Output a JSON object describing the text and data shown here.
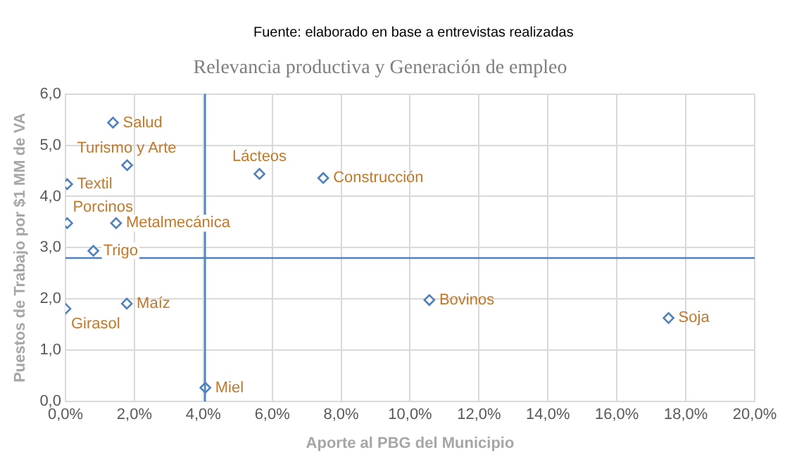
{
  "chart_data": {
    "type": "scatter",
    "title": "Relevancia productiva y Generación de empleo",
    "xlabel": "Aporte al PBG del Municipio",
    "ylabel": "Puestos de Trabajo por $1 MM de VA",
    "series": [
      {
        "color": "#4f81bd",
        "x": [
          1.38,
          1.79,
          0.05,
          5.63,
          7.48,
          0.05,
          1.47,
          0.81,
          0.0,
          1.78,
          4.06,
          10.56,
          17.5
        ],
        "values": [
          5.44,
          4.61,
          4.24,
          4.44,
          4.36,
          3.48,
          3.48,
          2.94,
          1.81,
          1.91,
          0.27,
          1.98,
          1.63
        ]
      }
    ],
    "annotations": [
      "Fuente: elaborado en base a entrevistas realizadas",
      {
        "text": "Salud",
        "x": 1.38,
        "y": 5.44
      },
      {
        "text": "Turismo y Arte",
        "x": 1.79,
        "y": 4.61
      },
      {
        "text": "Textil",
        "x": 0.05,
        "y": 4.24
      },
      {
        "text": "Lácteos",
        "x": 5.63,
        "y": 4.44
      },
      {
        "text": "Construcción",
        "x": 7.48,
        "y": 4.36
      },
      {
        "text": "Porcinos",
        "x": 0.05,
        "y": 3.48
      },
      {
        "text": "Metalmecánica",
        "x": 1.47,
        "y": 3.48
      },
      {
        "text": "Trigo",
        "x": 0.81,
        "y": 2.94
      },
      {
        "text": "Girasol",
        "x": 0.0,
        "y": 1.81
      },
      {
        "text": "Maíz",
        "x": 1.78,
        "y": 1.91
      },
      {
        "text": "Miel",
        "x": 4.06,
        "y": 0.27
      },
      {
        "text": "Bovinos",
        "x": 10.56,
        "y": 1.98
      },
      {
        "text": "Soja",
        "x": 17.5,
        "y": 1.63
      }
    ],
    "xlim": [
      0,
      20
    ],
    "xticks": [
      {
        "value": 0,
        "label": "0,0%"
      },
      {
        "value": 2,
        "label": "2,0%"
      },
      {
        "value": 4,
        "label": "4,0%"
      },
      {
        "value": 6,
        "label": "6,0%"
      },
      {
        "value": 8,
        "label": "8,0%"
      },
      {
        "value": 10,
        "label": "10,0%"
      },
      {
        "value": 12,
        "label": "12,0%"
      },
      {
        "value": 14,
        "label": "14,0%"
      },
      {
        "value": 16,
        "label": "16,0%"
      },
      {
        "value": 18,
        "label": "18,0%"
      },
      {
        "value": 20,
        "label": "20,0%"
      }
    ],
    "ylim": [
      0,
      6
    ],
    "yticks": [
      {
        "value": 0,
        "label": "0,0"
      },
      {
        "value": 1,
        "label": "1,0"
      },
      {
        "value": 2,
        "label": "2,0"
      },
      {
        "value": 3,
        "label": "3,0"
      },
      {
        "value": 4,
        "label": "4,0"
      },
      {
        "value": 5,
        "label": "5,0"
      },
      {
        "value": 6,
        "label": "6,0"
      }
    ],
    "ref_lines": [
      {
        "axis": "x",
        "value": 4.05,
        "color": "#4f81bd"
      },
      {
        "axis": "y",
        "value": 2.8,
        "color": "#4f81bd"
      }
    ],
    "grid": true,
    "legend": false,
    "marker": "diamond"
  }
}
